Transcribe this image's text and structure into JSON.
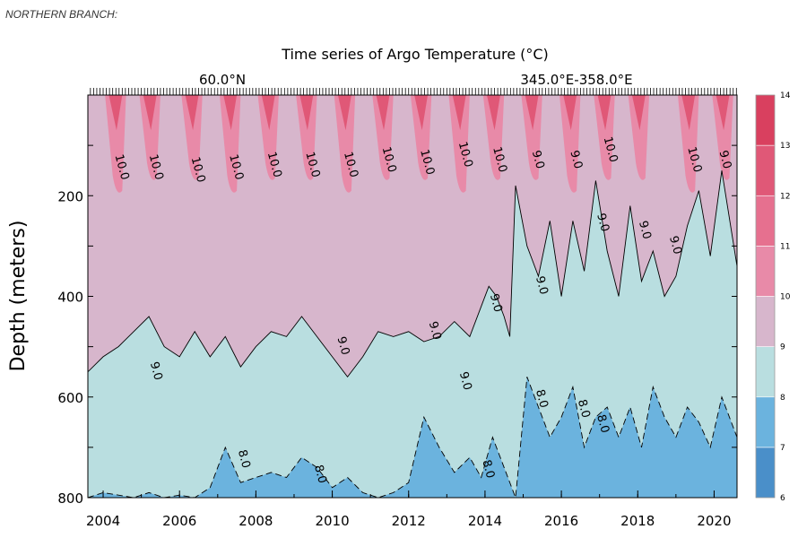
{
  "caption": "NORTHERN BRANCH:",
  "chart_data": {
    "type": "heatmap",
    "title": "Time series of Argo Temperature (°C)",
    "latitude_label": "60.0°N",
    "longitude_label": "345.0°E-358.0°E",
    "ylabel": "Depth (meters)",
    "xlabel": "",
    "xlim": [
      2003.6,
      2020.6
    ],
    "ylim": [
      800,
      0
    ],
    "x_ticks": [
      2004,
      2006,
      2008,
      2010,
      2012,
      2014,
      2016,
      2018,
      2020
    ],
    "x_tick_labels": [
      "2004",
      "2006",
      "2008",
      "2010",
      "2012",
      "2014",
      "2016",
      "2018",
      "2020"
    ],
    "y_ticks": [
      200,
      400,
      600,
      800
    ],
    "y_tick_labels": [
      "200",
      "400",
      "600",
      "800"
    ],
    "colorbar": {
      "levels": [
        6,
        7,
        8,
        9,
        10,
        11,
        12,
        13,
        14
      ],
      "labels": [
        "6",
        "7",
        "8",
        "9",
        "10",
        "11",
        "12",
        "13",
        "14"
      ],
      "colors": [
        "#4a8fc9",
        "#6bb3de",
        "#b9dee0",
        "#d7b6cc",
        "#e88aa8",
        "#e6708f",
        "#e05877",
        "#d9405f"
      ]
    },
    "boundary_8_9": {
      "x": [
        2003.6,
        2004.0,
        2004.4,
        2004.8,
        2005.2,
        2005.6,
        2006.0,
        2006.4,
        2006.8,
        2007.2,
        2007.6,
        2008.0,
        2008.4,
        2008.8,
        2009.2,
        2009.6,
        2010.0,
        2010.4,
        2010.8,
        2011.2,
        2011.6,
        2012.0,
        2012.4,
        2012.8,
        2013.2,
        2013.6,
        2013.9,
        2014.1,
        2014.3,
        2014.5,
        2014.65,
        2014.8,
        2015.1,
        2015.4,
        2015.7,
        2016.0,
        2016.3,
        2016.6,
        2016.9,
        2017.2,
        2017.5,
        2017.8,
        2018.1,
        2018.4,
        2018.7,
        2019.0,
        2019.3,
        2019.6,
        2019.9,
        2020.2,
        2020.6
      ],
      "depth": [
        550,
        520,
        500,
        470,
        440,
        500,
        520,
        470,
        520,
        480,
        540,
        500,
        470,
        480,
        440,
        480,
        520,
        560,
        520,
        470,
        480,
        470,
        490,
        480,
        450,
        480,
        420,
        380,
        400,
        440,
        480,
        180,
        300,
        360,
        250,
        400,
        250,
        350,
        170,
        310,
        400,
        220,
        370,
        310,
        400,
        360,
        260,
        190,
        320,
        150,
        340
      ]
    },
    "boundary_7_8": {
      "x": [
        2003.6,
        2004.0,
        2004.4,
        2004.8,
        2005.2,
        2005.6,
        2006.0,
        2006.4,
        2006.8,
        2007.2,
        2007.6,
        2008.0,
        2008.4,
        2008.8,
        2009.2,
        2009.6,
        2010.0,
        2010.4,
        2010.8,
        2011.2,
        2011.6,
        2012.0,
        2012.4,
        2012.8,
        2013.2,
        2013.6,
        2013.9,
        2014.2,
        2014.5,
        2014.8,
        2015.1,
        2015.4,
        2015.7,
        2016.0,
        2016.3,
        2016.6,
        2016.9,
        2017.2,
        2017.5,
        2017.8,
        2018.1,
        2018.4,
        2018.7,
        2019.0,
        2019.3,
        2019.6,
        2019.9,
        2020.2,
        2020.6
      ],
      "depth": [
        800,
        790,
        795,
        800,
        790,
        800,
        795,
        800,
        780,
        700,
        770,
        760,
        750,
        760,
        720,
        740,
        780,
        760,
        790,
        800,
        790,
        770,
        640,
        700,
        750,
        720,
        760,
        680,
        740,
        800,
        560,
        620,
        680,
        640,
        580,
        700,
        640,
        620,
        680,
        620,
        700,
        580,
        640,
        680,
        620,
        650,
        700,
        600,
        680
      ]
    },
    "contour_labels": [
      "10.0",
      "9.0",
      "8.0"
    ],
    "annotations": [
      {
        "text": "10.0",
        "x": 2004.4,
        "depth": 145
      },
      {
        "text": "10.0",
        "x": 2005.3,
        "depth": 145
      },
      {
        "text": "10.0",
        "x": 2006.4,
        "depth": 150
      },
      {
        "text": "10.0",
        "x": 2007.4,
        "depth": 145
      },
      {
        "text": "10.0",
        "x": 2008.4,
        "depth": 140
      },
      {
        "text": "10.0",
        "x": 2009.4,
        "depth": 140
      },
      {
        "text": "10.0",
        "x": 2010.4,
        "depth": 140
      },
      {
        "text": "10.0",
        "x": 2011.4,
        "depth": 130
      },
      {
        "text": "10.0",
        "x": 2012.4,
        "depth": 135
      },
      {
        "text": "10.0",
        "x": 2013.4,
        "depth": 120
      },
      {
        "text": "10.0",
        "x": 2014.3,
        "depth": 130
      },
      {
        "text": "9.0",
        "x": 2015.3,
        "depth": 130
      },
      {
        "text": "9.0",
        "x": 2016.3,
        "depth": 130
      },
      {
        "text": "10.0",
        "x": 2017.2,
        "depth": 110
      },
      {
        "text": "10.0",
        "x": 2019.4,
        "depth": 130
      },
      {
        "text": "9.0",
        "x": 2020.2,
        "depth": 130
      },
      {
        "text": "9.0",
        "x": 2017.0,
        "depth": 255
      },
      {
        "text": "9.0",
        "x": 2018.1,
        "depth": 270
      },
      {
        "text": "9.0",
        "x": 2018.9,
        "depth": 300
      },
      {
        "text": "9.0",
        "x": 2015.4,
        "depth": 380
      },
      {
        "text": "9.0",
        "x": 2014.2,
        "depth": 415
      },
      {
        "text": "9.0",
        "x": 2012.6,
        "depth": 470
      },
      {
        "text": "9.0",
        "x": 2010.2,
        "depth": 500
      },
      {
        "text": "9.0",
        "x": 2005.3,
        "depth": 550
      },
      {
        "text": "9.0",
        "x": 2013.4,
        "depth": 570
      },
      {
        "text": "8.0",
        "x": 2015.4,
        "depth": 605
      },
      {
        "text": "8.0",
        "x": 2016.5,
        "depth": 625
      },
      {
        "text": "8.0",
        "x": 2017.0,
        "depth": 655
      },
      {
        "text": "8.0",
        "x": 2007.6,
        "depth": 725
      },
      {
        "text": "8.0",
        "x": 2009.6,
        "depth": 755
      },
      {
        "text": "8.0",
        "x": 2014.0,
        "depth": 745
      }
    ]
  }
}
